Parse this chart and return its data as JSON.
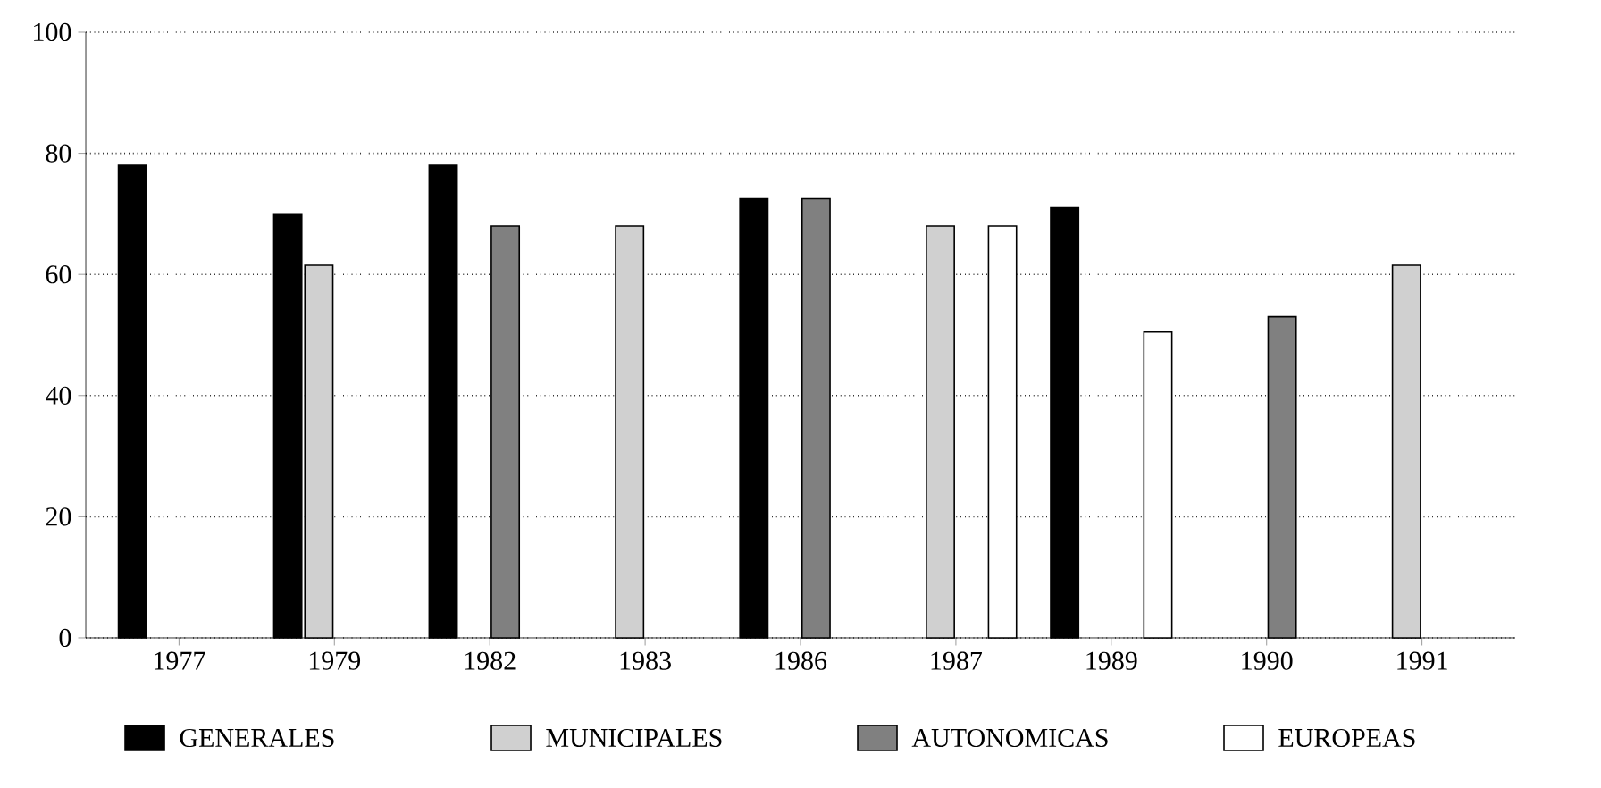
{
  "chart_data": {
    "type": "bar",
    "categories": [
      "1977",
      "1979",
      "1982",
      "1983",
      "1986",
      "1987",
      "1989",
      "1990",
      "1991"
    ],
    "series": [
      {
        "name": "GENERALES",
        "color": "#000000",
        "values": [
          78,
          70,
          78,
          null,
          72.5,
          null,
          71,
          null,
          null
        ]
      },
      {
        "name": "MUNICIPALES",
        "color": "#d0d0d0",
        "values": [
          null,
          61.5,
          null,
          68,
          null,
          68,
          null,
          null,
          61.5
        ]
      },
      {
        "name": "AUTONOMICAS",
        "color": "#808080",
        "values": [
          null,
          null,
          68,
          null,
          72.5,
          null,
          null,
          53,
          null
        ]
      },
      {
        "name": "EUROPEAS",
        "color": "#ffffff",
        "values": [
          null,
          null,
          null,
          null,
          null,
          68,
          50.5,
          null,
          null
        ]
      }
    ],
    "ylim": [
      0,
      100
    ],
    "yticks": [
      0,
      20,
      40,
      60,
      80,
      100
    ],
    "grid": "y",
    "legend": "bottom"
  }
}
